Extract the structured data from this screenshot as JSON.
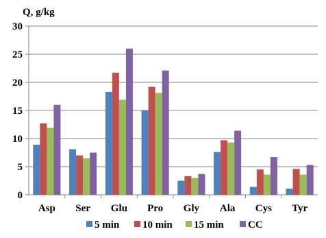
{
  "chart_data": {
    "type": "bar",
    "ylabel": "Q, g/kg",
    "ylim": [
      0,
      30
    ],
    "yticks": [
      0,
      5,
      10,
      15,
      20,
      25,
      30
    ],
    "grid": true,
    "legend_position": "bottom",
    "categories": [
      "Asp",
      "Ser",
      "Glu",
      "Pro",
      "Gly",
      "Ala",
      "Cys",
      "Tyr"
    ],
    "series": [
      {
        "name": "5 min",
        "color": "#4F81BD",
        "values": [
          8.9,
          8.1,
          18.3,
          15.0,
          2.5,
          7.6,
          1.4,
          1.1
        ]
      },
      {
        "name": "10 min",
        "color": "#C0504D",
        "values": [
          12.7,
          7.0,
          21.7,
          19.2,
          3.3,
          9.7,
          4.5,
          4.6
        ]
      },
      {
        "name": "15 min",
        "color": "#9BBB59",
        "values": [
          11.9,
          6.5,
          16.9,
          18.1,
          3.0,
          9.3,
          3.6,
          3.6
        ]
      },
      {
        "name": "CC",
        "color": "#8064A2",
        "values": [
          16.0,
          7.5,
          26.0,
          22.1,
          3.7,
          11.4,
          6.7,
          5.3
        ]
      }
    ]
  }
}
